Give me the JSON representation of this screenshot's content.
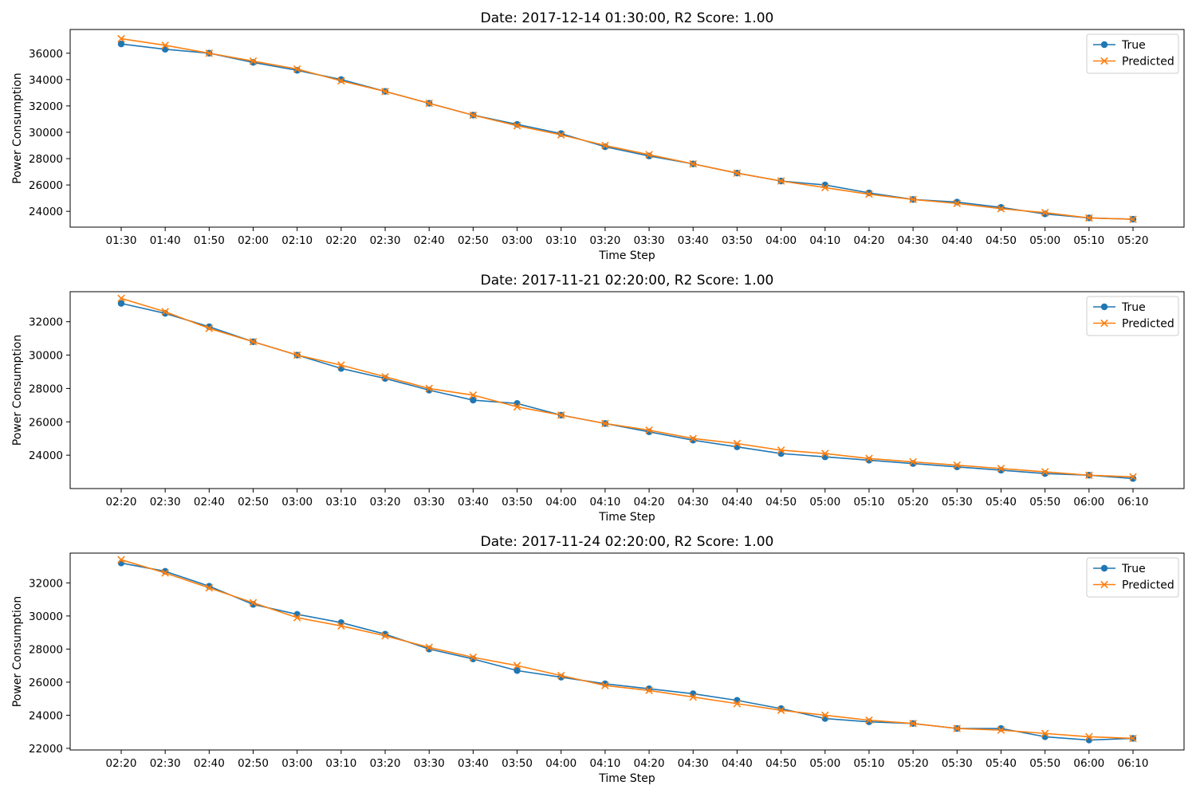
{
  "chart_data": [
    {
      "type": "line",
      "title": "Date: 2017-12-14 01:30:00, R2 Score: 1.00",
      "xlabel": "Time Step",
      "ylabel": "Power Consumption",
      "ylim": [
        22800,
        37800
      ],
      "yticks": [
        24000,
        26000,
        28000,
        30000,
        32000,
        34000,
        36000
      ],
      "grid": false,
      "legend_position": "top-right",
      "categories": [
        "01:30",
        "01:40",
        "01:50",
        "02:00",
        "02:10",
        "02:20",
        "02:30",
        "02:40",
        "02:50",
        "03:00",
        "03:10",
        "03:20",
        "03:30",
        "03:40",
        "03:50",
        "04:00",
        "04:10",
        "04:20",
        "04:30",
        "04:40",
        "04:50",
        "05:00",
        "05:10",
        "05:20"
      ],
      "series": [
        {
          "name": "True",
          "color": "#1f77b4",
          "marker": "circle",
          "values": [
            36700,
            36300,
            36000,
            35300,
            34700,
            34000,
            33100,
            32200,
            31300,
            30600,
            29900,
            28900,
            28200,
            27600,
            26900,
            26300,
            26000,
            25400,
            24900,
            24700,
            24300,
            23800,
            23500,
            23400
          ]
        },
        {
          "name": "Predicted",
          "color": "#ff7f0e",
          "marker": "x",
          "values": [
            37100,
            36600,
            36000,
            35400,
            34800,
            33900,
            33100,
            32200,
            31300,
            30500,
            29800,
            29000,
            28300,
            27600,
            26900,
            26300,
            25800,
            25300,
            24900,
            24600,
            24200,
            23900,
            23500,
            23400
          ]
        }
      ]
    },
    {
      "type": "line",
      "title": "Date: 2017-11-21 02:20:00, R2 Score: 1.00",
      "xlabel": "Time Step",
      "ylabel": "Power Consumption",
      "ylim": [
        22000,
        33800
      ],
      "yticks": [
        24000,
        26000,
        28000,
        30000,
        32000
      ],
      "grid": false,
      "legend_position": "top-right",
      "categories": [
        "02:20",
        "02:30",
        "02:40",
        "02:50",
        "03:00",
        "03:10",
        "03:20",
        "03:30",
        "03:40",
        "03:50",
        "04:00",
        "04:10",
        "04:20",
        "04:30",
        "04:40",
        "04:50",
        "05:00",
        "05:10",
        "05:20",
        "05:30",
        "05:40",
        "05:50",
        "06:00",
        "06:10"
      ],
      "series": [
        {
          "name": "True",
          "color": "#1f77b4",
          "marker": "circle",
          "values": [
            33100,
            32500,
            31700,
            30800,
            30000,
            29200,
            28600,
            27900,
            27300,
            27100,
            26400,
            25900,
            25400,
            24900,
            24500,
            24100,
            23900,
            23700,
            23500,
            23300,
            23100,
            22900,
            22800,
            22600
          ]
        },
        {
          "name": "Predicted",
          "color": "#ff7f0e",
          "marker": "x",
          "values": [
            33400,
            32600,
            31600,
            30800,
            30000,
            29400,
            28700,
            28000,
            27600,
            26900,
            26400,
            25900,
            25500,
            25000,
            24700,
            24300,
            24100,
            23800,
            23600,
            23400,
            23200,
            23000,
            22800,
            22700
          ]
        }
      ]
    },
    {
      "type": "line",
      "title": "Date: 2017-11-24 02:20:00, R2 Score: 1.00",
      "xlabel": "Time Step",
      "ylabel": "Power Consumption",
      "ylim": [
        21900,
        33800
      ],
      "yticks": [
        22000,
        24000,
        26000,
        28000,
        30000,
        32000
      ],
      "grid": false,
      "legend_position": "top-right",
      "categories": [
        "02:20",
        "02:30",
        "02:40",
        "02:50",
        "03:00",
        "03:10",
        "03:20",
        "03:30",
        "03:40",
        "03:50",
        "04:00",
        "04:10",
        "04:20",
        "04:30",
        "04:40",
        "04:50",
        "05:00",
        "05:10",
        "05:20",
        "05:30",
        "05:40",
        "05:50",
        "06:00",
        "06:10"
      ],
      "series": [
        {
          "name": "True",
          "color": "#1f77b4",
          "marker": "circle",
          "values": [
            33200,
            32700,
            31800,
            30700,
            30100,
            29600,
            28900,
            28000,
            27400,
            26700,
            26300,
            25900,
            25600,
            25300,
            24900,
            24400,
            23800,
            23600,
            23500,
            23200,
            23200,
            22700,
            22500,
            22600
          ]
        },
        {
          "name": "Predicted",
          "color": "#ff7f0e",
          "marker": "x",
          "values": [
            33400,
            32600,
            31700,
            30800,
            29900,
            29400,
            28800,
            28100,
            27500,
            27000,
            26400,
            25800,
            25500,
            25100,
            24700,
            24300,
            24000,
            23700,
            23500,
            23200,
            23100,
            22900,
            22700,
            22600
          ]
        }
      ]
    }
  ]
}
